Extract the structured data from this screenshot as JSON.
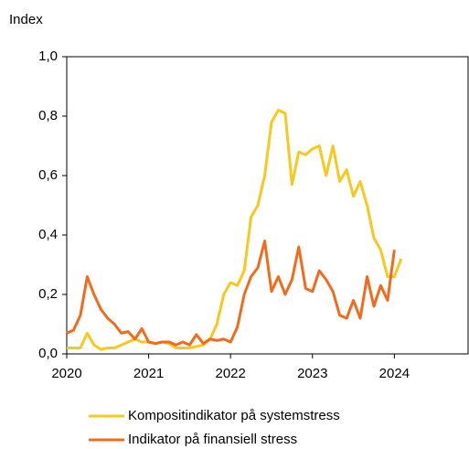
{
  "chart_data": {
    "type": "line",
    "y_axis_label": "Index",
    "x": [
      2020,
      2020.083,
      2020.167,
      2020.25,
      2020.333,
      2020.417,
      2020.5,
      2020.583,
      2020.667,
      2020.75,
      2020.833,
      2020.917,
      2021,
      2021.083,
      2021.167,
      2021.25,
      2021.333,
      2021.417,
      2021.5,
      2021.583,
      2021.667,
      2021.75,
      2021.833,
      2021.917,
      2022,
      2022.083,
      2022.167,
      2022.25,
      2022.333,
      2022.417,
      2022.5,
      2022.583,
      2022.667,
      2022.75,
      2022.833,
      2022.917,
      2023,
      2023.083,
      2023.167,
      2023.25,
      2023.333,
      2023.417,
      2023.5,
      2023.583,
      2023.667,
      2023.75,
      2023.833,
      2023.917,
      2024,
      2024.083
    ],
    "series": [
      {
        "name": "Kompositindikator på systemstress",
        "color": "#f7c81e",
        "values": [
          0.02,
          0.02,
          0.02,
          0.07,
          0.03,
          0.015,
          0.02,
          0.02,
          0.03,
          0.04,
          0.05,
          0.04,
          0.04,
          0.035,
          0.04,
          0.035,
          0.02,
          0.02,
          0.02,
          0.025,
          0.03,
          0.05,
          0.1,
          0.2,
          0.24,
          0.23,
          0.28,
          0.46,
          0.5,
          0.6,
          0.78,
          0.82,
          0.81,
          0.57,
          0.68,
          0.67,
          0.69,
          0.7,
          0.6,
          0.7,
          0.58,
          0.62,
          0.53,
          0.58,
          0.5,
          0.39,
          0.35,
          0.26,
          0.26,
          0.32
        ]
      },
      {
        "name": "Indikator på finansiell stress",
        "color": "#f26b1d",
        "values": [
          0.07,
          0.08,
          0.13,
          0.26,
          0.2,
          0.15,
          0.12,
          0.1,
          0.07,
          0.075,
          0.05,
          0.085,
          0.04,
          0.035,
          0.04,
          0.04,
          0.03,
          0.04,
          0.03,
          0.065,
          0.035,
          0.05,
          0.045,
          0.05,
          0.04,
          0.09,
          0.2,
          0.26,
          0.29,
          0.38,
          0.21,
          0.26,
          0.2,
          0.25,
          0.36,
          0.22,
          0.21,
          0.28,
          0.25,
          0.21,
          0.13,
          0.12,
          0.18,
          0.12,
          0.26,
          0.16,
          0.23,
          0.18,
          0.35,
          null
        ]
      }
    ],
    "xlim": [
      2020,
      2024.9
    ],
    "xticks": [
      2020,
      2021,
      2022,
      2023,
      2024
    ],
    "ylim": [
      0,
      1
    ],
    "yticks": [
      {
        "value": 0,
        "label": "0,0"
      },
      {
        "value": 0.2,
        "label": "0,2"
      },
      {
        "value": 0.4,
        "label": "0,4"
      },
      {
        "value": 0.6,
        "label": "0,6"
      },
      {
        "value": 0.8,
        "label": "0,8"
      },
      {
        "value": 1,
        "label": "1,0"
      }
    ]
  }
}
